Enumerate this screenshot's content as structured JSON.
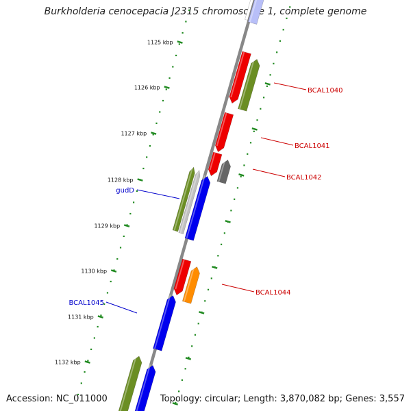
{
  "title": "Burkholderia cenocepacia J2315 chromosome 1, complete genome",
  "accession_label": "Accession: NC_011000",
  "topology_label": "Topology: circular; Length: 3,870,082 bp; Genes: 3,557",
  "colors": {
    "backbone": "#808080",
    "tick_major": "#228b22",
    "tick_minor": "#228b22",
    "tick_label": "#111111",
    "forward_gene_label": "#cc0000",
    "reverse_gene_label": "#0000cc",
    "red": "#ee0000",
    "olive": "#6b8e23",
    "blue": "#0000ee",
    "grey": "#666666",
    "orange": "#ff8c00",
    "light_grey": "#c0c0c0"
  },
  "ticks": [
    {
      "label": "1125 kbp"
    },
    {
      "label": "1126 kbp"
    },
    {
      "label": "1127 kbp"
    },
    {
      "label": "1128 kbp"
    },
    {
      "label": "1129 kbp"
    },
    {
      "label": "1130 kbp"
    },
    {
      "label": "1131 kbp"
    },
    {
      "label": "1132 kbp"
    }
  ],
  "gene_labels": [
    {
      "text": "BCAL1040",
      "strand": "forward"
    },
    {
      "text": "BCAL1041",
      "strand": "forward"
    },
    {
      "text": "BCAL1042",
      "strand": "forward"
    },
    {
      "text": "gudD",
      "strand": "reverse"
    },
    {
      "text": "BCAL1044",
      "strand": "forward"
    },
    {
      "text": "BCAL1045",
      "strand": "reverse"
    }
  ]
}
